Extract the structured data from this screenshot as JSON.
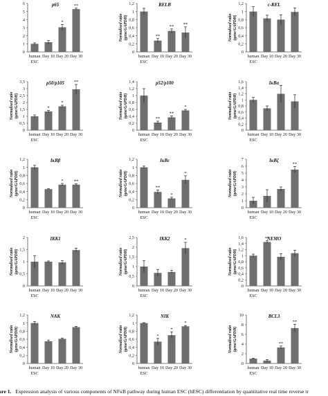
{
  "caption": {
    "label": "ure 1.",
    "text": "Expression analysis of various components of NFκB pathway during human ESC (hESC) differentiation by quantitative real time reverse tr"
  },
  "chart_data": [
    {
      "type": "bar",
      "title": "p65",
      "ylabel": "",
      "ylim": [
        0,
        6
      ],
      "yticks": [
        "0",
        "1",
        "2",
        "3",
        "4",
        "5",
        "6"
      ],
      "categories": [
        "human ESC",
        "Day 10",
        "Day 20",
        "Day 30"
      ],
      "values": [
        1.0,
        1.2,
        3.05,
        5.3
      ],
      "errors": [
        0.12,
        0.2,
        0.35,
        0.12
      ],
      "annotations": [
        "",
        "",
        "*",
        "**"
      ]
    },
    {
      "type": "bar",
      "title": "RELB",
      "ylabel": "Normalised ratio (gene/GAPDH)",
      "ylim": [
        0,
        1.2
      ],
      "yticks": [
        "0",
        "0,2",
        "0,4",
        "0,6",
        "0,8",
        "1",
        "1,2"
      ],
      "categories": [
        "human ESC",
        "Day 10",
        "Day 20",
        "Day 30"
      ],
      "values": [
        1.0,
        0.28,
        0.52,
        0.48
      ],
      "errors": [
        0.08,
        0.05,
        0.05,
        0.14
      ],
      "annotations": [
        "",
        "**",
        "**",
        "**"
      ]
    },
    {
      "type": "bar",
      "title": "c-REL",
      "ylabel": "Normalised ratio (gene/GAPDH)",
      "ylim": [
        0,
        1.2
      ],
      "yticks": [
        "0",
        "0,2",
        "0,4",
        "0,6",
        "0,8",
        "1",
        "1,2"
      ],
      "categories": [
        "human ESC",
        "Day 10",
        "Day 20",
        "Day 30"
      ],
      "values": [
        1.0,
        0.83,
        0.8,
        0.99
      ],
      "errors": [
        0.12,
        0.08,
        0.12,
        0.1
      ],
      "annotations": [
        "",
        "",
        "",
        ""
      ]
    },
    {
      "type": "bar",
      "title": "p50/p105",
      "ylabel": "Normalised ratio (gene/GAPDH)",
      "ylim": [
        0,
        3.5
      ],
      "yticks": [
        "0",
        "0,5",
        "1",
        "1,5",
        "2",
        "2,5",
        "3",
        "3,5"
      ],
      "categories": [
        "human ESC",
        "Day 10",
        "Day 20",
        "Day 30"
      ],
      "values": [
        1.0,
        1.35,
        1.72,
        2.95
      ],
      "errors": [
        0.1,
        0.08,
        0.08,
        0.35
      ],
      "annotations": [
        "",
        "*",
        "*",
        "**"
      ]
    },
    {
      "type": "bar",
      "title": "p52/p100",
      "ylabel": "Normalised ratio (gene/GAPDH)",
      "ylim": [
        0,
        1.4
      ],
      "yticks": [
        "0",
        "0,2",
        "0,4",
        "0,6",
        "0,8",
        "1",
        "1,2",
        "1,4"
      ],
      "categories": [
        "human ESC",
        "Day 10",
        "Day 20",
        "Day 30"
      ],
      "values": [
        1.0,
        0.22,
        0.37,
        0.57
      ],
      "errors": [
        0.2,
        0.04,
        0.04,
        0.03
      ],
      "annotations": [
        "",
        "**",
        "**",
        "*"
      ]
    },
    {
      "type": "bar",
      "title": "IκBα",
      "ylabel": "Normalised ratio (gene/GAPDH)",
      "ylim": [
        0,
        1.6
      ],
      "yticks": [
        "0",
        "0,2",
        "0,4",
        "0,6",
        "0,8",
        "1",
        "1,2",
        "1,4",
        "1,6"
      ],
      "categories": [
        "human ESC",
        "Day 10",
        "Day 20",
        "Day 30"
      ],
      "values": [
        1.0,
        0.72,
        1.2,
        0.95
      ],
      "errors": [
        0.08,
        0.08,
        0.28,
        0.22
      ],
      "annotations": [
        "",
        "",
        "",
        ""
      ]
    },
    {
      "type": "bar",
      "title": "IκBβ",
      "ylabel": "Normalised ratio (gene/GAPDH)",
      "ylim": [
        0,
        1.2
      ],
      "yticks": [
        "0",
        "0,2",
        "0,4",
        "0,6",
        "0,8",
        "1",
        "1,2"
      ],
      "categories": [
        "human ESC",
        "Day 10",
        "Day 20",
        "Day 30"
      ],
      "values": [
        1.0,
        0.46,
        0.57,
        0.57
      ],
      "errors": [
        0.05,
        0.01,
        0.03,
        0.02
      ],
      "annotations": [
        "",
        "",
        "*",
        "**"
      ]
    },
    {
      "type": "bar",
      "title": "IκBε",
      "ylabel": "Normalised ratio (gene/GAPDH)",
      "ylim": [
        0,
        1.2
      ],
      "yticks": [
        "0",
        "0,2",
        "0,4",
        "0,6",
        "0,8",
        "1",
        "1,2"
      ],
      "categories": [
        "human ESC",
        "Day 10",
        "Day 20",
        "Day 30"
      ],
      "values": [
        1.0,
        0.39,
        0.23,
        0.69
      ],
      "errors": [
        0.03,
        0.05,
        0.03,
        0.1
      ],
      "annotations": [
        "",
        "**",
        "*",
        "*"
      ]
    },
    {
      "type": "bar",
      "title": "IκBζ",
      "ylabel": "Normalised ratio (gene/GAPDH)",
      "ylim": [
        0,
        7
      ],
      "yticks": [
        "0",
        "1",
        "2",
        "3",
        "4",
        "5",
        "6",
        "7"
      ],
      "categories": [
        "human ESC",
        "Day 10",
        "Day 20",
        "Day 30"
      ],
      "values": [
        1.0,
        1.7,
        2.7,
        5.5
      ],
      "errors": [
        0.5,
        0.9,
        0.3,
        0.45
      ],
      "annotations": [
        "",
        "",
        "",
        "**"
      ]
    },
    {
      "type": "bar",
      "title": "IKK1",
      "ylabel": "Normalised ratio (gene/GAPDH)",
      "ylim": [
        0,
        2
      ],
      "yticks": [
        "0",
        "0,5",
        "1",
        "1,5",
        "2"
      ],
      "categories": [
        "human ESC",
        "Day 10",
        "Day 20",
        "Day 30"
      ],
      "values": [
        1.0,
        1.0,
        0.97,
        1.48
      ],
      "errors": [
        0.25,
        0.03,
        0.07,
        0.08
      ],
      "annotations": [
        "",
        "",
        "",
        ""
      ]
    },
    {
      "type": "bar",
      "title": "IKK2",
      "ylabel": "Normalised ratio (gene/GAPDH)",
      "ylim": [
        0,
        2.5
      ],
      "yticks": [
        "0",
        "0,5",
        "1",
        "1,5",
        "2",
        "2,5"
      ],
      "categories": [
        "human ESC",
        "Day 10",
        "Day 20",
        "Day 30"
      ],
      "values": [
        1.0,
        0.67,
        0.72,
        1.95
      ],
      "errors": [
        0.3,
        0.18,
        0.08,
        0.3
      ],
      "annotations": [
        "",
        "",
        "",
        "*"
      ]
    },
    {
      "type": "bar",
      "title": "NEMO",
      "ylabel": "Normalised ratio (gene/GAPDH)",
      "ylim": [
        0,
        1.6
      ],
      "yticks": [
        "0",
        "0,2",
        "0,4",
        "0,6",
        "0,8",
        "1",
        "1,2",
        "1,4",
        "1,6"
      ],
      "categories": [
        "human ESC",
        "Day 10",
        "Day 20",
        "Day 30"
      ],
      "values": [
        1.0,
        1.45,
        0.96,
        1.08
      ],
      "errors": [
        0.05,
        0.04,
        0.1,
        0.1
      ],
      "annotations": [
        "",
        "**",
        "",
        ""
      ]
    },
    {
      "type": "bar",
      "title": "NAK",
      "ylabel": "Normalised ratio (gene/GAPDH)",
      "ylim": [
        0,
        1.2
      ],
      "yticks": [
        "0",
        "0,2",
        "0,4",
        "0,6",
        "0,8",
        "1",
        "1,2"
      ],
      "categories": [
        "human ESC",
        "Day 10",
        "Day 20",
        "Day 30"
      ],
      "values": [
        1.0,
        0.55,
        0.61,
        0.9
      ],
      "errors": [
        0.04,
        0.03,
        0.02,
        0.02
      ],
      "annotations": [
        "",
        "",
        "",
        ""
      ]
    },
    {
      "type": "bar",
      "title": "NIK",
      "ylabel": "Normalised ratio (gene/GAPDH)",
      "ylim": [
        0,
        1.2
      ],
      "yticks": [
        "0",
        "0,2",
        "0,4",
        "0,6",
        "0,8",
        "1",
        "1,2"
      ],
      "categories": [
        "human ESC",
        "Day 10",
        "Day 20",
        "Day 30"
      ],
      "values": [
        1.0,
        0.54,
        0.7,
        0.92
      ],
      "errors": [
        0.01,
        0.08,
        0.08,
        0.02
      ],
      "annotations": [
        "",
        "*",
        "*",
        "*"
      ]
    },
    {
      "type": "bar",
      "title": "BCL3",
      "ylabel": "Normalised ratio (gene/GAPDH)",
      "ylim": [
        0,
        10
      ],
      "yticks": [
        "0",
        "2",
        "4",
        "6",
        "8",
        "10"
      ],
      "categories": [
        "human ESC",
        "Day 10",
        "Day 20",
        "Day 30"
      ],
      "values": [
        1.0,
        0.6,
        3.3,
        7.3
      ],
      "errors": [
        0.1,
        0.2,
        0.3,
        0.8
      ],
      "annotations": [
        "",
        "",
        "**",
        "**"
      ]
    }
  ]
}
